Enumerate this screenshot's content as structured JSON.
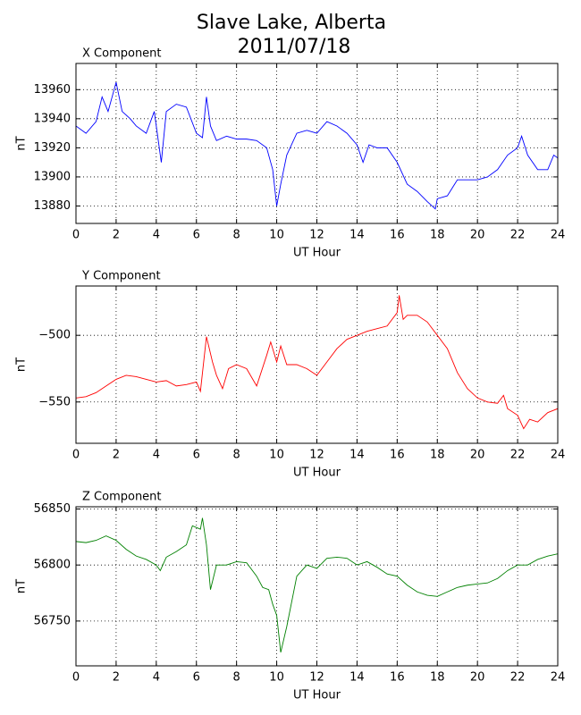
{
  "title": "Slave Lake, Alberta",
  "subtitle": "2011/07/18",
  "chart_data": [
    {
      "type": "line",
      "title": "X Component",
      "xlabel": "UT Hour",
      "ylabel": "nT",
      "grid": true,
      "xlim": [
        0,
        24
      ],
      "xticks": [
        0,
        2,
        4,
        6,
        8,
        10,
        12,
        14,
        16,
        18,
        20,
        22,
        24
      ],
      "ylim": [
        13868,
        13978
      ],
      "yticks": [
        13880,
        13900,
        13920,
        13940,
        13960
      ],
      "x": [
        0,
        0.5,
        1,
        1.3,
        1.6,
        2,
        2.3,
        2.7,
        3,
        3.5,
        3.9,
        4,
        4.25,
        4.5,
        5,
        5.5,
        6,
        6.3,
        6.5,
        6.7,
        7,
        7.5,
        8,
        8.5,
        9,
        9.5,
        9.8,
        10,
        10.2,
        10.5,
        11,
        11.5,
        12,
        12.5,
        13,
        13.5,
        14,
        14.3,
        14.6,
        15,
        15.5,
        16,
        16.5,
        17,
        17.5,
        17.9,
        18,
        18.5,
        19,
        19.5,
        20,
        20.5,
        21,
        21.5,
        22,
        22.2,
        22.5,
        23,
        23.5,
        23.8,
        24
      ],
      "series": [
        {
          "color": "#0000ff",
          "values": [
            13935,
            13930,
            13938,
            13955,
            13945,
            13965,
            13945,
            13940,
            13935,
            13930,
            13945,
            13935,
            13910,
            13945,
            13950,
            13948,
            13930,
            13927,
            13955,
            13935,
            13925,
            13928,
            13926,
            13926,
            13925,
            13920,
            13905,
            13880,
            13895,
            13915,
            13930,
            13932,
            13930,
            13938,
            13935,
            13930,
            13922,
            13910,
            13922,
            13920,
            13920,
            13910,
            13895,
            13890,
            13883,
            13878,
            13885,
            13887,
            13898,
            13898,
            13898,
            13900,
            13905,
            13915,
            13920,
            13928,
            13915,
            13905,
            13905,
            13915,
            13913
          ]
        }
      ]
    },
    {
      "type": "line",
      "title": "Y Component",
      "xlabel": "UT Hour",
      "ylabel": "nT",
      "grid": true,
      "xlim": [
        0,
        24
      ],
      "xticks": [
        0,
        2,
        4,
        6,
        8,
        10,
        12,
        14,
        16,
        18,
        20,
        22,
        24
      ],
      "ylim": [
        -581,
        -463
      ],
      "yticks": [
        {
          "value": -550,
          "label": "−550"
        },
        {
          "value": -500,
          "label": "−500"
        }
      ],
      "x": [
        0,
        0.5,
        1,
        1.5,
        2,
        2.5,
        3,
        3.5,
        4,
        4.5,
        5,
        5.5,
        6,
        6.2,
        6.5,
        6.8,
        7,
        7.3,
        7.6,
        8,
        8.5,
        9,
        9.5,
        9.7,
        10,
        10.2,
        10.5,
        11,
        11.5,
        12,
        12.5,
        13,
        13.5,
        14,
        14.5,
        15,
        15.5,
        16,
        16.1,
        16.3,
        16.5,
        17,
        17.5,
        18,
        18.5,
        19,
        19.5,
        20,
        20.5,
        21,
        21.3,
        21.5,
        22,
        22.3,
        22.6,
        23,
        23.5,
        24
      ],
      "series": [
        {
          "color": "#ff0000",
          "values": [
            -547,
            -546,
            -543,
            -538,
            -533,
            -530,
            -531,
            -533,
            -535,
            -534,
            -538,
            -537,
            -535,
            -542,
            -501,
            -520,
            -530,
            -540,
            -525,
            -522,
            -525,
            -538,
            -515,
            -505,
            -520,
            -508,
            -522,
            -522,
            -525,
            -530,
            -520,
            -510,
            -503,
            -500,
            -497,
            -495,
            -493,
            -483,
            -470,
            -488,
            -485,
            -485,
            -490,
            -500,
            -510,
            -528,
            -540,
            -547,
            -550,
            -551,
            -545,
            -555,
            -560,
            -570,
            -563,
            -565,
            -558,
            -555
          ]
        }
      ]
    },
    {
      "type": "line",
      "title": "Z Component",
      "xlabel": "UT Hour",
      "ylabel": "nT",
      "grid": true,
      "xlim": [
        0,
        24
      ],
      "xticks": [
        0,
        2,
        4,
        6,
        8,
        10,
        12,
        14,
        16,
        18,
        20,
        22,
        24
      ],
      "ylim": [
        56710,
        56852
      ],
      "yticks": [
        56750,
        56800,
        56850
      ],
      "x": [
        0,
        0.5,
        1,
        1.5,
        2,
        2.5,
        3,
        3.5,
        4,
        4.2,
        4.5,
        5,
        5.5,
        5.8,
        6.2,
        6.3,
        6.5,
        6.7,
        7,
        7.5,
        8,
        8.5,
        9,
        9.3,
        9.6,
        9.8,
        10,
        10.2,
        10.5,
        11,
        11.5,
        12,
        12.5,
        13,
        13.5,
        14,
        14.5,
        15,
        15.5,
        16,
        16.5,
        17,
        17.5,
        18,
        18.5,
        19,
        19.5,
        20,
        20.5,
        21,
        21.5,
        22,
        22.5,
        23,
        23.5,
        24
      ],
      "series": [
        {
          "color": "#008000",
          "values": [
            56821,
            56820,
            56822,
            56826,
            56822,
            56814,
            56808,
            56805,
            56800,
            56795,
            56807,
            56812,
            56818,
            56835,
            56832,
            56842,
            56818,
            56778,
            56800,
            56800,
            56803,
            56802,
            56790,
            56780,
            56778,
            56765,
            56755,
            56722,
            56745,
            56790,
            56800,
            56797,
            56806,
            56807,
            56806,
            56800,
            56803,
            56798,
            56792,
            56790,
            56782,
            56776,
            56773,
            56772,
            56776,
            56780,
            56782,
            56783,
            56784,
            56788,
            56795,
            56800,
            56800,
            56805,
            56808,
            56810
          ]
        }
      ]
    }
  ]
}
